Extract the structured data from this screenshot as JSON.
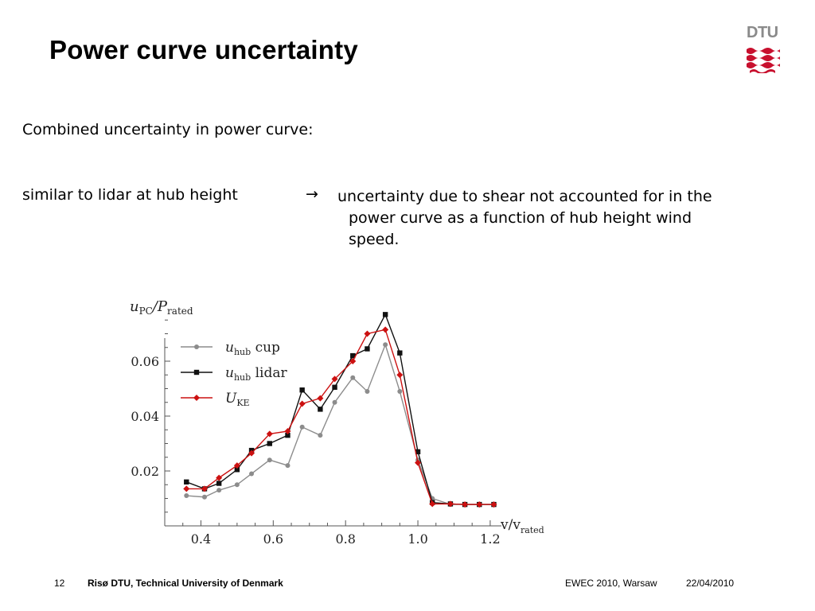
{
  "slide": {
    "title": "Power curve uncertainty",
    "logo_text": "DTU",
    "text_line1": "Combined uncertainty in power curve:",
    "text_left": "similar to lidar at hub height",
    "text_right_1": "uncertainty due to shear not accounted for in the",
    "text_right_2": "power curve as a function of hub height wind",
    "text_right_3": "speed."
  },
  "footer": {
    "page": "12",
    "org": "Risø DTU, Technical University of Denmark",
    "event": "EWEC 2010, Warsaw",
    "date": "22/04/2010"
  },
  "colors": {
    "cup": "#8c8c8c",
    "lidar": "#111111",
    "uke": "#cc1111",
    "logo_red": "#c8102e"
  },
  "chart_data": {
    "type": "line",
    "ylabel_main": "u",
    "ylabel_sub1": "PC",
    "ylabel_mid": "/P",
    "ylabel_sub2": "rated",
    "xlabel_main": "v/v",
    "xlabel_sub": "rated",
    "xlim": [
      0.3,
      1.22
    ],
    "ylim": [
      0.0,
      0.08
    ],
    "xticks": [
      0.4,
      0.6,
      0.8,
      1.0,
      1.2
    ],
    "xtick_labels": [
      "0.4",
      "0.6",
      "0.8",
      "1.0",
      "1.2"
    ],
    "yticks": [
      0.02,
      0.04,
      0.06
    ],
    "ytick_labels": [
      "0.02",
      "0.04",
      "0.06"
    ],
    "grid": false,
    "legend": "top-left",
    "x": [
      0.36,
      0.41,
      0.45,
      0.5,
      0.54,
      0.59,
      0.64,
      0.68,
      0.73,
      0.77,
      0.82,
      0.86,
      0.91,
      0.95,
      1.0,
      1.04,
      1.09,
      1.13,
      1.17,
      1.21
    ],
    "series": [
      {
        "name_main": "u",
        "name_sub": "hub",
        "name_suffix": " cup",
        "marker": "circle",
        "color": "#8c8c8c",
        "values": [
          0.011,
          0.0105,
          0.013,
          0.015,
          0.019,
          0.024,
          0.022,
          0.036,
          0.033,
          0.045,
          0.054,
          0.049,
          0.066,
          0.049,
          0.024,
          0.01,
          0.0078,
          0.0078,
          0.0078,
          0.0078
        ]
      },
      {
        "name_main": "u",
        "name_sub": "hub",
        "name_suffix": " lidar",
        "marker": "square",
        "color": "#111111",
        "values": [
          0.016,
          0.0135,
          0.0155,
          0.0205,
          0.0275,
          0.03,
          0.033,
          0.0495,
          0.0425,
          0.0505,
          0.062,
          0.0645,
          0.077,
          0.063,
          0.027,
          0.0085,
          0.008,
          0.0078,
          0.0078,
          0.0078
        ]
      },
      {
        "name_main": "U",
        "name_sub": "KE",
        "name_suffix": "",
        "marker": "diamond",
        "color": "#cc1111",
        "values": [
          0.0135,
          0.0135,
          0.0175,
          0.022,
          0.0265,
          0.0335,
          0.0345,
          0.0445,
          0.0465,
          0.0535,
          0.06,
          0.07,
          0.0715,
          0.055,
          0.023,
          0.008,
          0.008,
          0.0078,
          0.0078,
          0.0078
        ]
      }
    ]
  }
}
